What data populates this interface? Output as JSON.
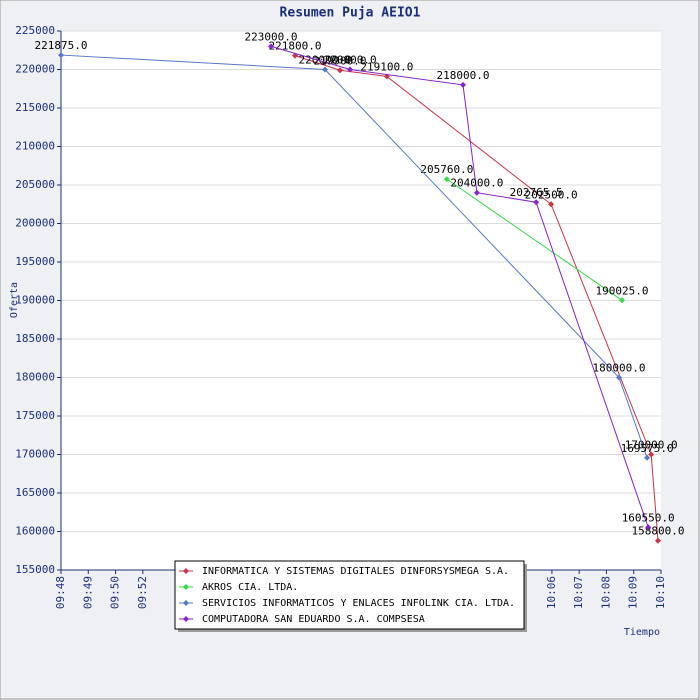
{
  "chart_data": {
    "type": "line",
    "title": "Resumen Puja AEIO1",
    "x_label": "Tiempo",
    "y_label": "Oferta",
    "xlim": [
      0,
      22
    ],
    "xticks": [
      {
        "value": 0,
        "label": "09:48"
      },
      {
        "value": 1,
        "label": "09:49"
      },
      {
        "value": 2,
        "label": "09:50"
      },
      {
        "value": 3,
        "label": "09:52"
      },
      {
        "value": 18,
        "label": "10:06"
      },
      {
        "value": 19,
        "label": "10:07"
      },
      {
        "value": 20,
        "label": "10:08"
      },
      {
        "value": 21,
        "label": "10:09"
      },
      {
        "value": 22,
        "label": "10:10"
      }
    ],
    "ylim": [
      155000,
      225000
    ],
    "yticks": [
      155000,
      160000,
      165000,
      170000,
      175000,
      180000,
      185000,
      190000,
      195000,
      200000,
      205000,
      210000,
      215000,
      220000,
      225000
    ],
    "grid": true,
    "series": [
      {
        "name": "INFORMATICA Y SISTEMAS DIGITALES DINFORSYSMEGA S.A.",
        "color": "#cc3344",
        "x": [
          8.58,
          10.23,
          11.95,
          17.97,
          21.64,
          21.89
        ],
        "values": [
          221800,
          219900,
          219100,
          202500,
          170000,
          158800
        ],
        "value_labels": [
          "221800.0",
          "219900.0",
          "219100.0",
          "202500.0",
          "170000.0",
          "158800.0"
        ]
      },
      {
        "name": "AKROS CIA. LTDA.",
        "color": "#33dd44",
        "x": [
          14.15,
          20.57
        ],
        "values": [
          205760,
          190025
        ],
        "value_labels": [
          "205760.0",
          "190025.0"
        ]
      },
      {
        "name": "SERVICIOS INFORMATICOS Y ENLACES INFOLINK CIA. LTDA.",
        "color": "#5577cc",
        "x": [
          0,
          9.68,
          20.46,
          21.49
        ],
        "values": [
          221875,
          220000,
          180000,
          169575
        ],
        "value_labels": [
          "221875.0",
          "220000.0",
          "180000.0",
          "169575.0"
        ]
      },
      {
        "name": "COMPUTADORA SAN EDUARDO S.A. COMPSESA",
        "color": "#8822cc",
        "x": [
          7.7,
          10.6,
          14.74,
          15.25,
          17.42,
          21.53
        ],
        "values": [
          223000,
          220000,
          218000,
          204000,
          202765.5,
          160550
        ],
        "value_labels": [
          "223000.0",
          "220000.0",
          "218000.0",
          "204000.0",
          "202765.5",
          "160550.0"
        ]
      }
    ]
  }
}
